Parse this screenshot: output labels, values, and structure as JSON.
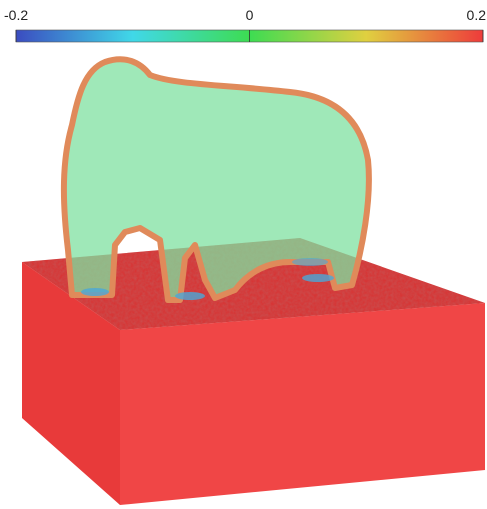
{
  "colorbar": {
    "range": [
      -0.2,
      0.2
    ],
    "ticks": [
      -0.2,
      0,
      0.2
    ]
  }
}
